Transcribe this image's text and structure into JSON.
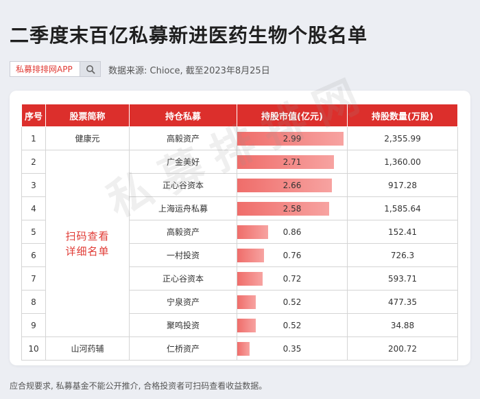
{
  "title": "二季度末百亿私募新进医药生物个股名单",
  "search": {
    "text": "私募排排网APP",
    "icon": "search-icon"
  },
  "source_note": "数据来源: Chioce, 截至2023年8月25日",
  "watermark": "私募排排网",
  "table": {
    "headers": [
      "序号",
      "股票简称",
      "持仓私募",
      "持股市值(亿元)",
      "持股数量(万股)"
    ],
    "merged_note": [
      "扫码查看",
      "详细名单"
    ],
    "rows": [
      {
        "index": "1",
        "stock": "健康元",
        "fund": "高毅资产",
        "value": 2.99,
        "value_label": "2.99",
        "shares": "2,355.99"
      },
      {
        "index": "2",
        "stock": "",
        "fund": "广金美好",
        "value": 2.71,
        "value_label": "2.71",
        "shares": "1,360.00"
      },
      {
        "index": "3",
        "stock": "",
        "fund": "正心谷资本",
        "value": 2.66,
        "value_label": "2.66",
        "shares": "917.28"
      },
      {
        "index": "4",
        "stock": "",
        "fund": "上海运舟私募",
        "value": 2.58,
        "value_label": "2.58",
        "shares": "1,585.64"
      },
      {
        "index": "5",
        "stock": "",
        "fund": "高毅资产",
        "value": 0.86,
        "value_label": "0.86",
        "shares": "152.41"
      },
      {
        "index": "6",
        "stock": "",
        "fund": "一村投资",
        "value": 0.76,
        "value_label": "0.76",
        "shares": "726.3"
      },
      {
        "index": "7",
        "stock": "",
        "fund": "正心谷资本",
        "value": 0.72,
        "value_label": "0.72",
        "shares": "593.71"
      },
      {
        "index": "8",
        "stock": "",
        "fund": "宁泉资产",
        "value": 0.52,
        "value_label": "0.52",
        "shares": "477.35"
      },
      {
        "index": "9",
        "stock": "",
        "fund": "聚鸣投资",
        "value": 0.52,
        "value_label": "0.52",
        "shares": "34.88"
      },
      {
        "index": "10",
        "stock": "山河药辅",
        "fund": "仁桥资产",
        "value": 0.35,
        "value_label": "0.35",
        "shares": "200.72"
      }
    ],
    "bar_max": 2.99,
    "colors": {
      "header": "#dc2f2c",
      "bar": "#ef6d6a",
      "note": "#e03a34"
    }
  },
  "footer_note": "应合规要求, 私募基金不能公开推介, 合格投资者可扫码查看收益数据。"
}
